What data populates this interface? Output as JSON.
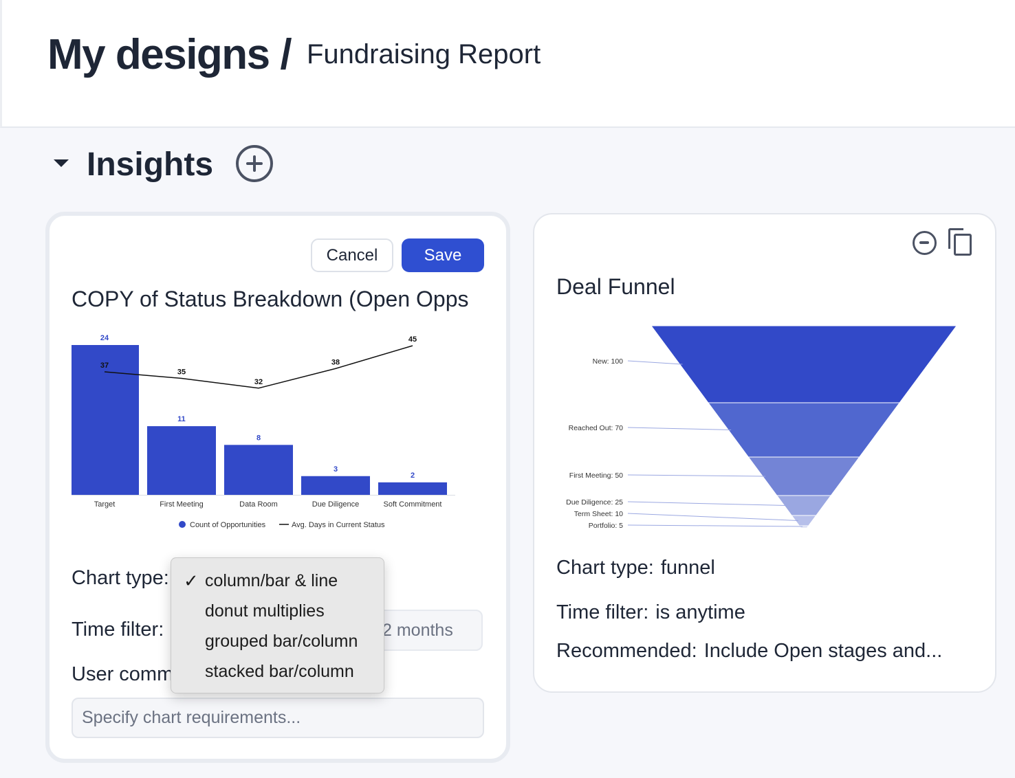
{
  "breadcrumb": {
    "root": "My designs /",
    "page": "Fundraising Report"
  },
  "section": {
    "title": "Insights"
  },
  "edit_card": {
    "cancel_label": "Cancel",
    "save_label": "Save",
    "title": "COPY of Status Breakdown (Open Opps",
    "chart_type_label": "Chart type:",
    "time_filter_label": "Time filter:",
    "time_filter_value": "2 months",
    "user_comment_label": "User comm",
    "requirements_placeholder": "Specify chart requirements..."
  },
  "chart_type_menu": {
    "selected_mark": "✓",
    "options": [
      "column/bar & line",
      "donut multiplies",
      "grouped bar/column",
      "stacked bar/column"
    ]
  },
  "deal_funnel_card": {
    "title": "Deal Funnel",
    "chart_type_label": "Chart type:",
    "chart_type_value": "funnel",
    "time_filter_label": "Time filter:",
    "time_filter_value": "is  anytime",
    "recommended_label": "Recommended:",
    "recommended_value": "Include Open stages and..."
  },
  "colors": {
    "accent": "#2f4fd1",
    "bar": "#3249c8",
    "line": "#111111",
    "text": "#1e2636"
  },
  "chart_data": [
    {
      "type": "bar",
      "categories": [
        "Target",
        "First Meeting",
        "Data Room",
        "Due Diligence",
        "Soft Commitment"
      ],
      "series": [
        {
          "name": "Count of Opportunities",
          "type": "bar",
          "values": [
            24,
            11,
            8,
            3,
            2
          ]
        },
        {
          "name": "Avg. Days in Current Status",
          "type": "line",
          "values": [
            37,
            35,
            32,
            38,
            45
          ]
        }
      ],
      "legend": "bottom",
      "grid": false
    },
    {
      "type": "funnel",
      "categories": [
        "New",
        "Reached Out",
        "First Meeting",
        "Due Diligence",
        "Term Sheet",
        "Portfolio"
      ],
      "values": [
        100,
        70,
        50,
        25,
        10,
        5
      ],
      "labels": [
        "New: 100",
        "Reached Out: 70",
        "First Meeting: 50",
        "Due Diligence: 25",
        "Term Sheet: 10",
        "Portfolio: 5"
      ]
    }
  ]
}
